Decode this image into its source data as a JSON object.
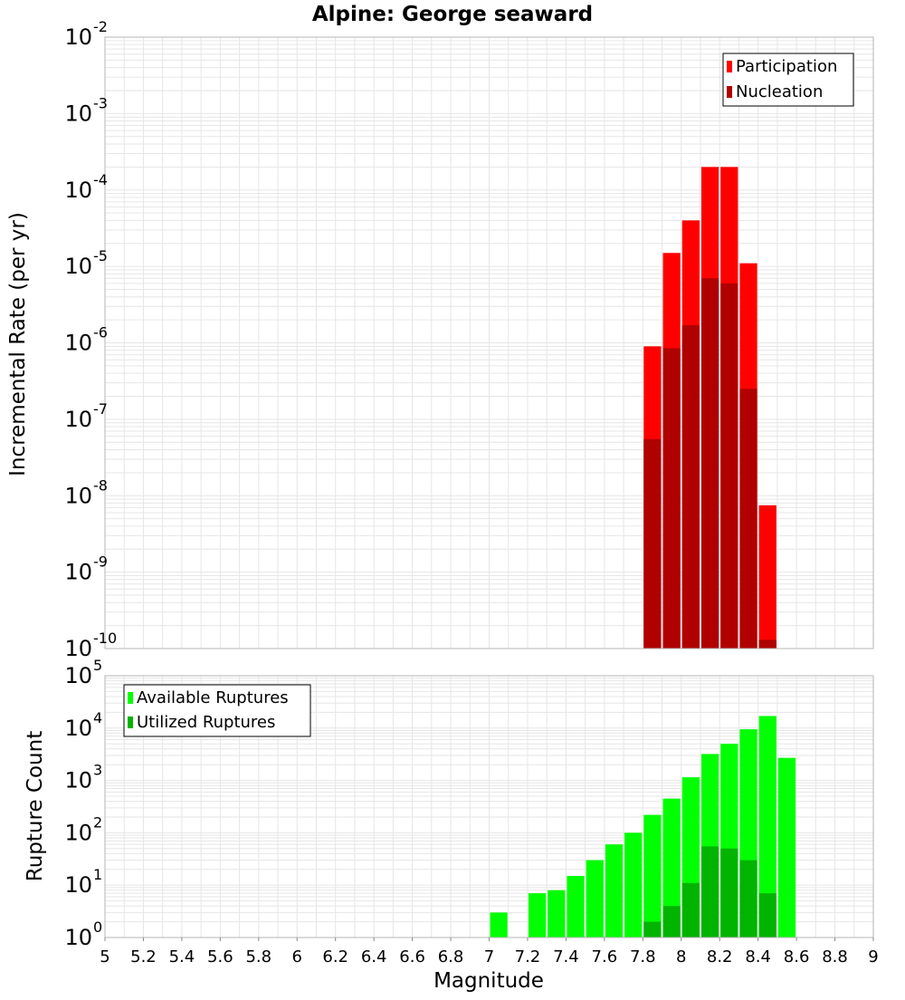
{
  "title": "Alpine: George seaward",
  "colors": {
    "participation": "#ff0000",
    "nucleation": "#b00000",
    "available": "#00ff00",
    "utilized": "#00b400",
    "grid": "#e6e6e6",
    "plot_border": "#b4b4b4"
  },
  "chart_data": [
    {
      "type": "bar",
      "scale": "log",
      "overlaid": true,
      "ylabel": "Incremental Rate (per yr)",
      "ylim_exponents": [
        -10,
        -2
      ],
      "ytick_exponents": [
        -10,
        -9,
        -8,
        -7,
        -6,
        -5,
        -4,
        -3,
        -2
      ],
      "xlim": [
        5,
        9
      ],
      "bin_width": 0.1,
      "legend_position": "top-right",
      "series": [
        {
          "name": "Participation",
          "color": "#ff0000",
          "points": [
            {
              "x": 7.85,
              "y": 9e-07
            },
            {
              "x": 7.95,
              "y": 1.5e-05
            },
            {
              "x": 8.05,
              "y": 4e-05
            },
            {
              "x": 8.15,
              "y": 0.0002
            },
            {
              "x": 8.25,
              "y": 0.0002
            },
            {
              "x": 8.35,
              "y": 1.1e-05
            },
            {
              "x": 8.45,
              "y": 7.5e-09
            }
          ]
        },
        {
          "name": "Nucleation",
          "color": "#b00000",
          "points": [
            {
              "x": 7.85,
              "y": 5.5e-08
            },
            {
              "x": 7.95,
              "y": 8.5e-07
            },
            {
              "x": 8.05,
              "y": 1.7e-06
            },
            {
              "x": 8.15,
              "y": 7e-06
            },
            {
              "x": 8.25,
              "y": 6e-06
            },
            {
              "x": 8.35,
              "y": 2.5e-07
            },
            {
              "x": 8.45,
              "y": 1.3e-10
            }
          ]
        }
      ]
    },
    {
      "type": "bar",
      "scale": "log",
      "overlaid": true,
      "xlabel": "Magnitude",
      "ylabel": "Rupture Count",
      "ylim_exponents": [
        0,
        5
      ],
      "ytick_exponents": [
        0,
        1,
        2,
        3,
        4,
        5
      ],
      "xlim": [
        5,
        9
      ],
      "xticks": [
        "5",
        "5.2",
        "5.4",
        "5.6",
        "5.8",
        "6",
        "6.2",
        "6.4",
        "6.6",
        "6.8",
        "7",
        "7.2",
        "7.4",
        "7.6",
        "7.8",
        "8",
        "8.2",
        "8.4",
        "8.6",
        "8.8",
        "9"
      ],
      "bin_width": 0.1,
      "legend_position": "top-left",
      "series": [
        {
          "name": "Available Ruptures",
          "color": "#00ff00",
          "points": [
            {
              "x": 6.75,
              "y": 1
            },
            {
              "x": 6.95,
              "y": 1
            },
            {
              "x": 7.05,
              "y": 3
            },
            {
              "x": 7.15,
              "y": 1
            },
            {
              "x": 7.25,
              "y": 7
            },
            {
              "x": 7.35,
              "y": 8
            },
            {
              "x": 7.45,
              "y": 15
            },
            {
              "x": 7.55,
              "y": 30
            },
            {
              "x": 7.65,
              "y": 60
            },
            {
              "x": 7.75,
              "y": 100
            },
            {
              "x": 7.85,
              "y": 220
            },
            {
              "x": 7.95,
              "y": 450
            },
            {
              "x": 8.05,
              "y": 1150
            },
            {
              "x": 8.15,
              "y": 3200
            },
            {
              "x": 8.25,
              "y": 5000
            },
            {
              "x": 8.35,
              "y": 9500
            },
            {
              "x": 8.45,
              "y": 17000
            },
            {
              "x": 8.55,
              "y": 2700
            }
          ]
        },
        {
          "name": "Utilized Ruptures",
          "color": "#00b400",
          "points": [
            {
              "x": 7.85,
              "y": 2
            },
            {
              "x": 7.95,
              "y": 4
            },
            {
              "x": 8.05,
              "y": 11
            },
            {
              "x": 8.15,
              "y": 55
            },
            {
              "x": 8.25,
              "y": 50
            },
            {
              "x": 8.35,
              "y": 30
            },
            {
              "x": 8.45,
              "y": 7
            }
          ]
        }
      ]
    }
  ]
}
